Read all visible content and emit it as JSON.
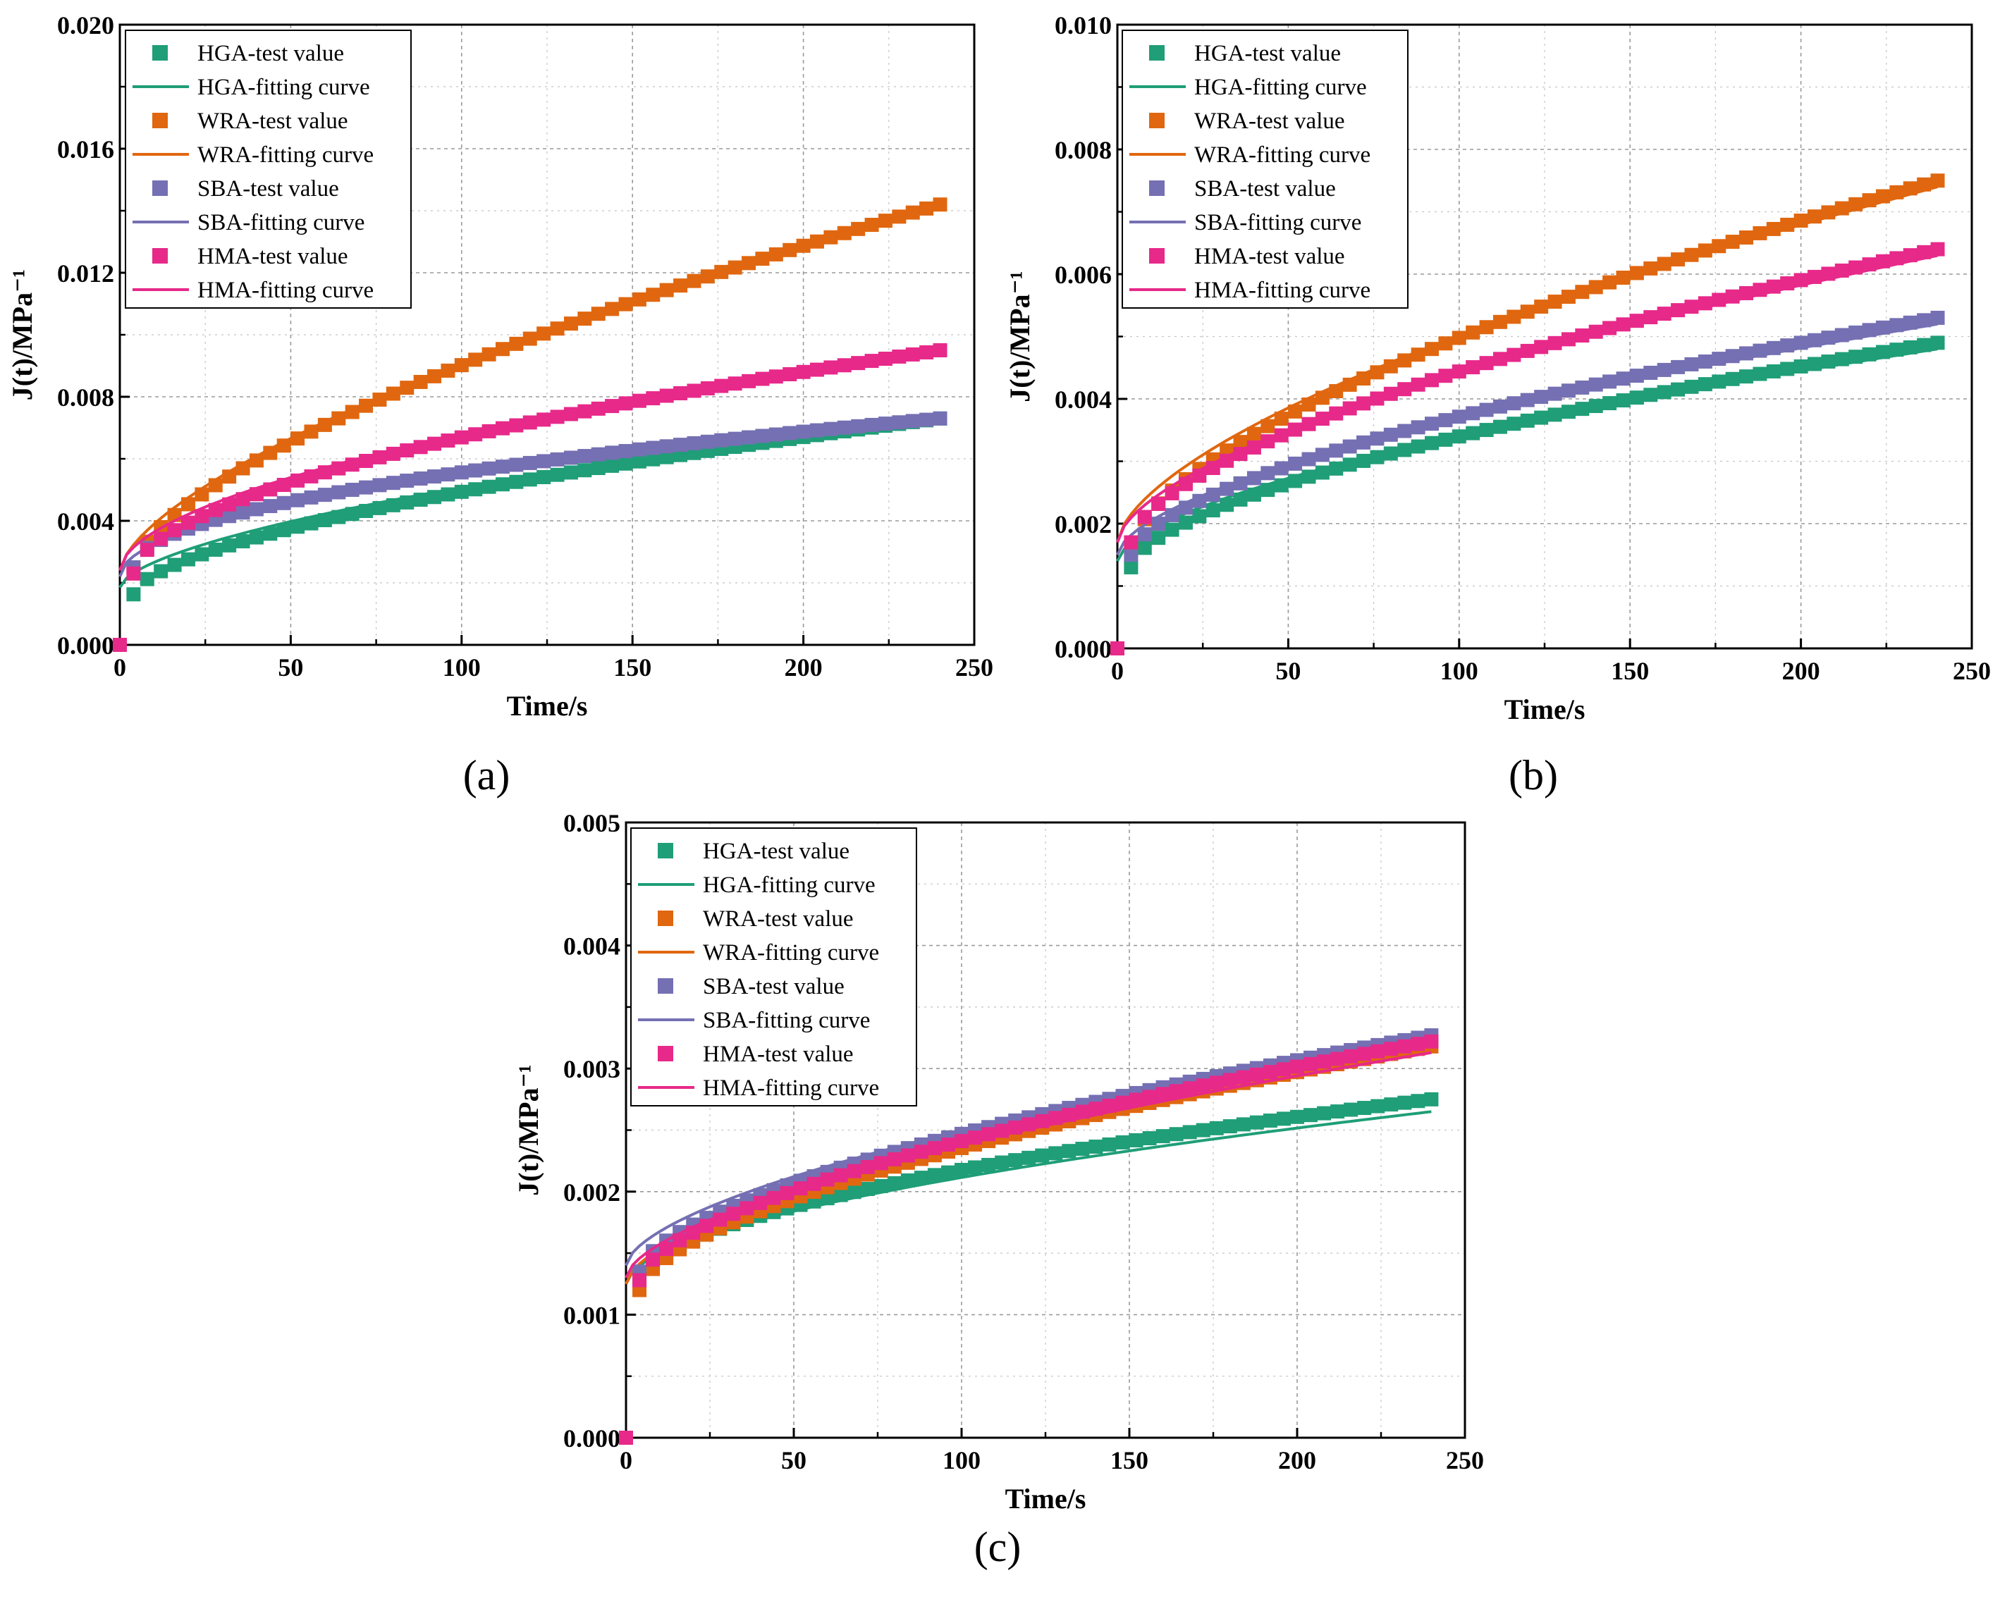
{
  "chart_data": [
    {
      "panel": "(a)",
      "type": "scatter+line",
      "xlabel": "Time/s",
      "ylabel": "J(t)/MPa⁻¹",
      "xlim": [
        0,
        250
      ],
      "ylim": [
        0,
        0.02
      ],
      "xticks": [
        "0",
        "50",
        "100",
        "150",
        "200",
        "250"
      ],
      "yticks": [
        "0.000",
        "0.004",
        "0.008",
        "0.012",
        "0.016",
        "0.020"
      ],
      "legend": [
        "HGA-test value",
        "HGA-fitting curve",
        "WRA-test value",
        "WRA-fitting curve",
        "SBA-test value",
        "SBA-fitting curve",
        "HMA-test value",
        "HMA-fitting curve"
      ],
      "series": [
        {
          "name": "HGA",
          "color": "#1f9e77",
          "test": {
            "t0": 0.0,
            "ts": 0.00163,
            "te": 0.0073,
            "p": 0.6
          },
          "fit": {
            "start": 0.00185,
            "end": 0.0073,
            "p": 0.6
          }
        },
        {
          "name": "WRA",
          "color": "#e0670f",
          "test": {
            "t0": 0.0,
            "ts": 0.0025,
            "te": 0.0142,
            "p": 0.65
          },
          "fit": {
            "start": 0.0024,
            "end": 0.0142,
            "p": 0.65
          }
        },
        {
          "name": "SBA",
          "color": "#7570b3",
          "test": {
            "t0": 0.0,
            "ts": 0.0025,
            "te": 0.0073,
            "p": 0.5
          },
          "fit": {
            "start": 0.0022,
            "end": 0.0073,
            "p": 0.5
          }
        },
        {
          "name": "HMA",
          "color": "#e7298a",
          "test": {
            "t0": 0.0,
            "ts": 0.0023,
            "te": 0.0095,
            "p": 0.55
          },
          "fit": {
            "start": 0.0024,
            "end": 0.0095,
            "p": 0.55
          }
        }
      ]
    },
    {
      "panel": "(b)",
      "type": "scatter+line",
      "xlabel": "Time/s",
      "ylabel": "J(t)/MPa⁻¹",
      "xlim": [
        0,
        250
      ],
      "ylim": [
        0,
        0.01
      ],
      "xticks": [
        "0",
        "50",
        "100",
        "150",
        "200",
        "250"
      ],
      "yticks": [
        "0.000",
        "0.002",
        "0.004",
        "0.006",
        "0.008",
        "0.010"
      ],
      "legend": [
        "HGA-test value",
        "HGA-fitting curve",
        "WRA-test value",
        "WRA-fitting curve",
        "SBA-test value",
        "SBA-fitting curve",
        "HMA-test value",
        "HMA-fitting curve"
      ],
      "series": [
        {
          "name": "HGA",
          "color": "#1f9e77",
          "test": {
            "t0": 0.0,
            "ts": 0.0013,
            "te": 0.0049,
            "p": 0.6
          },
          "fit": {
            "start": 0.0014,
            "end": 0.0048,
            "p": 0.6
          }
        },
        {
          "name": "WRA",
          "color": "#e0670f",
          "test": {
            "t0": 0.0,
            "ts": 0.0016,
            "te": 0.0075,
            "p": 0.62
          },
          "fit": {
            "start": 0.0017,
            "end": 0.0074,
            "p": 0.62
          }
        },
        {
          "name": "SBA",
          "color": "#7570b3",
          "test": {
            "t0": 0.0,
            "ts": 0.0015,
            "te": 0.0053,
            "p": 0.6
          },
          "fit": {
            "start": 0.0015,
            "end": 0.0052,
            "p": 0.6
          }
        },
        {
          "name": "HMA",
          "color": "#e7298a",
          "test": {
            "t0": 0.0,
            "ts": 0.0017,
            "te": 0.0064,
            "p": 0.6
          },
          "fit": {
            "start": 0.0017,
            "end": 0.0063,
            "p": 0.6
          }
        }
      ]
    },
    {
      "panel": "(c)",
      "type": "scatter+line",
      "xlabel": "Time/s",
      "ylabel": "J(t)/MPa⁻¹",
      "xlim": [
        0,
        250
      ],
      "ylim": [
        0,
        0.005
      ],
      "xticks": [
        "0",
        "50",
        "100",
        "150",
        "200",
        "250"
      ],
      "yticks": [
        "0.000",
        "0.001",
        "0.002",
        "0.003",
        "0.004",
        "0.005"
      ],
      "legend": [
        "HGA-test value",
        "HGA-fitting curve",
        "WRA-test value",
        "WRA-fitting curve",
        "SBA-test value",
        "SBA-fitting curve",
        "HMA-test value",
        "HMA-fitting curve"
      ],
      "series": [
        {
          "name": "HGA",
          "color": "#1f9e77",
          "test": {
            "t0": 0.0,
            "ts": 0.00128,
            "te": 0.00275,
            "p": 0.55
          },
          "fit": {
            "start": 0.00125,
            "end": 0.00265,
            "p": 0.55
          }
        },
        {
          "name": "WRA",
          "color": "#e0670f",
          "test": {
            "t0": 0.0,
            "ts": 0.0012,
            "te": 0.00318,
            "p": 0.6
          },
          "fit": {
            "start": 0.00125,
            "end": 0.00315,
            "p": 0.6
          }
        },
        {
          "name": "SBA",
          "color": "#7570b3",
          "test": {
            "t0": 0.0,
            "ts": 0.00135,
            "te": 0.00327,
            "p": 0.6
          },
          "fit": {
            "start": 0.0014,
            "end": 0.00325,
            "p": 0.6
          }
        },
        {
          "name": "HMA",
          "color": "#e7298a",
          "test": {
            "t0": 0.0,
            "ts": 0.00128,
            "te": 0.00322,
            "p": 0.6
          },
          "fit": {
            "start": 0.0013,
            "end": 0.00313,
            "p": 0.6
          }
        }
      ]
    }
  ]
}
